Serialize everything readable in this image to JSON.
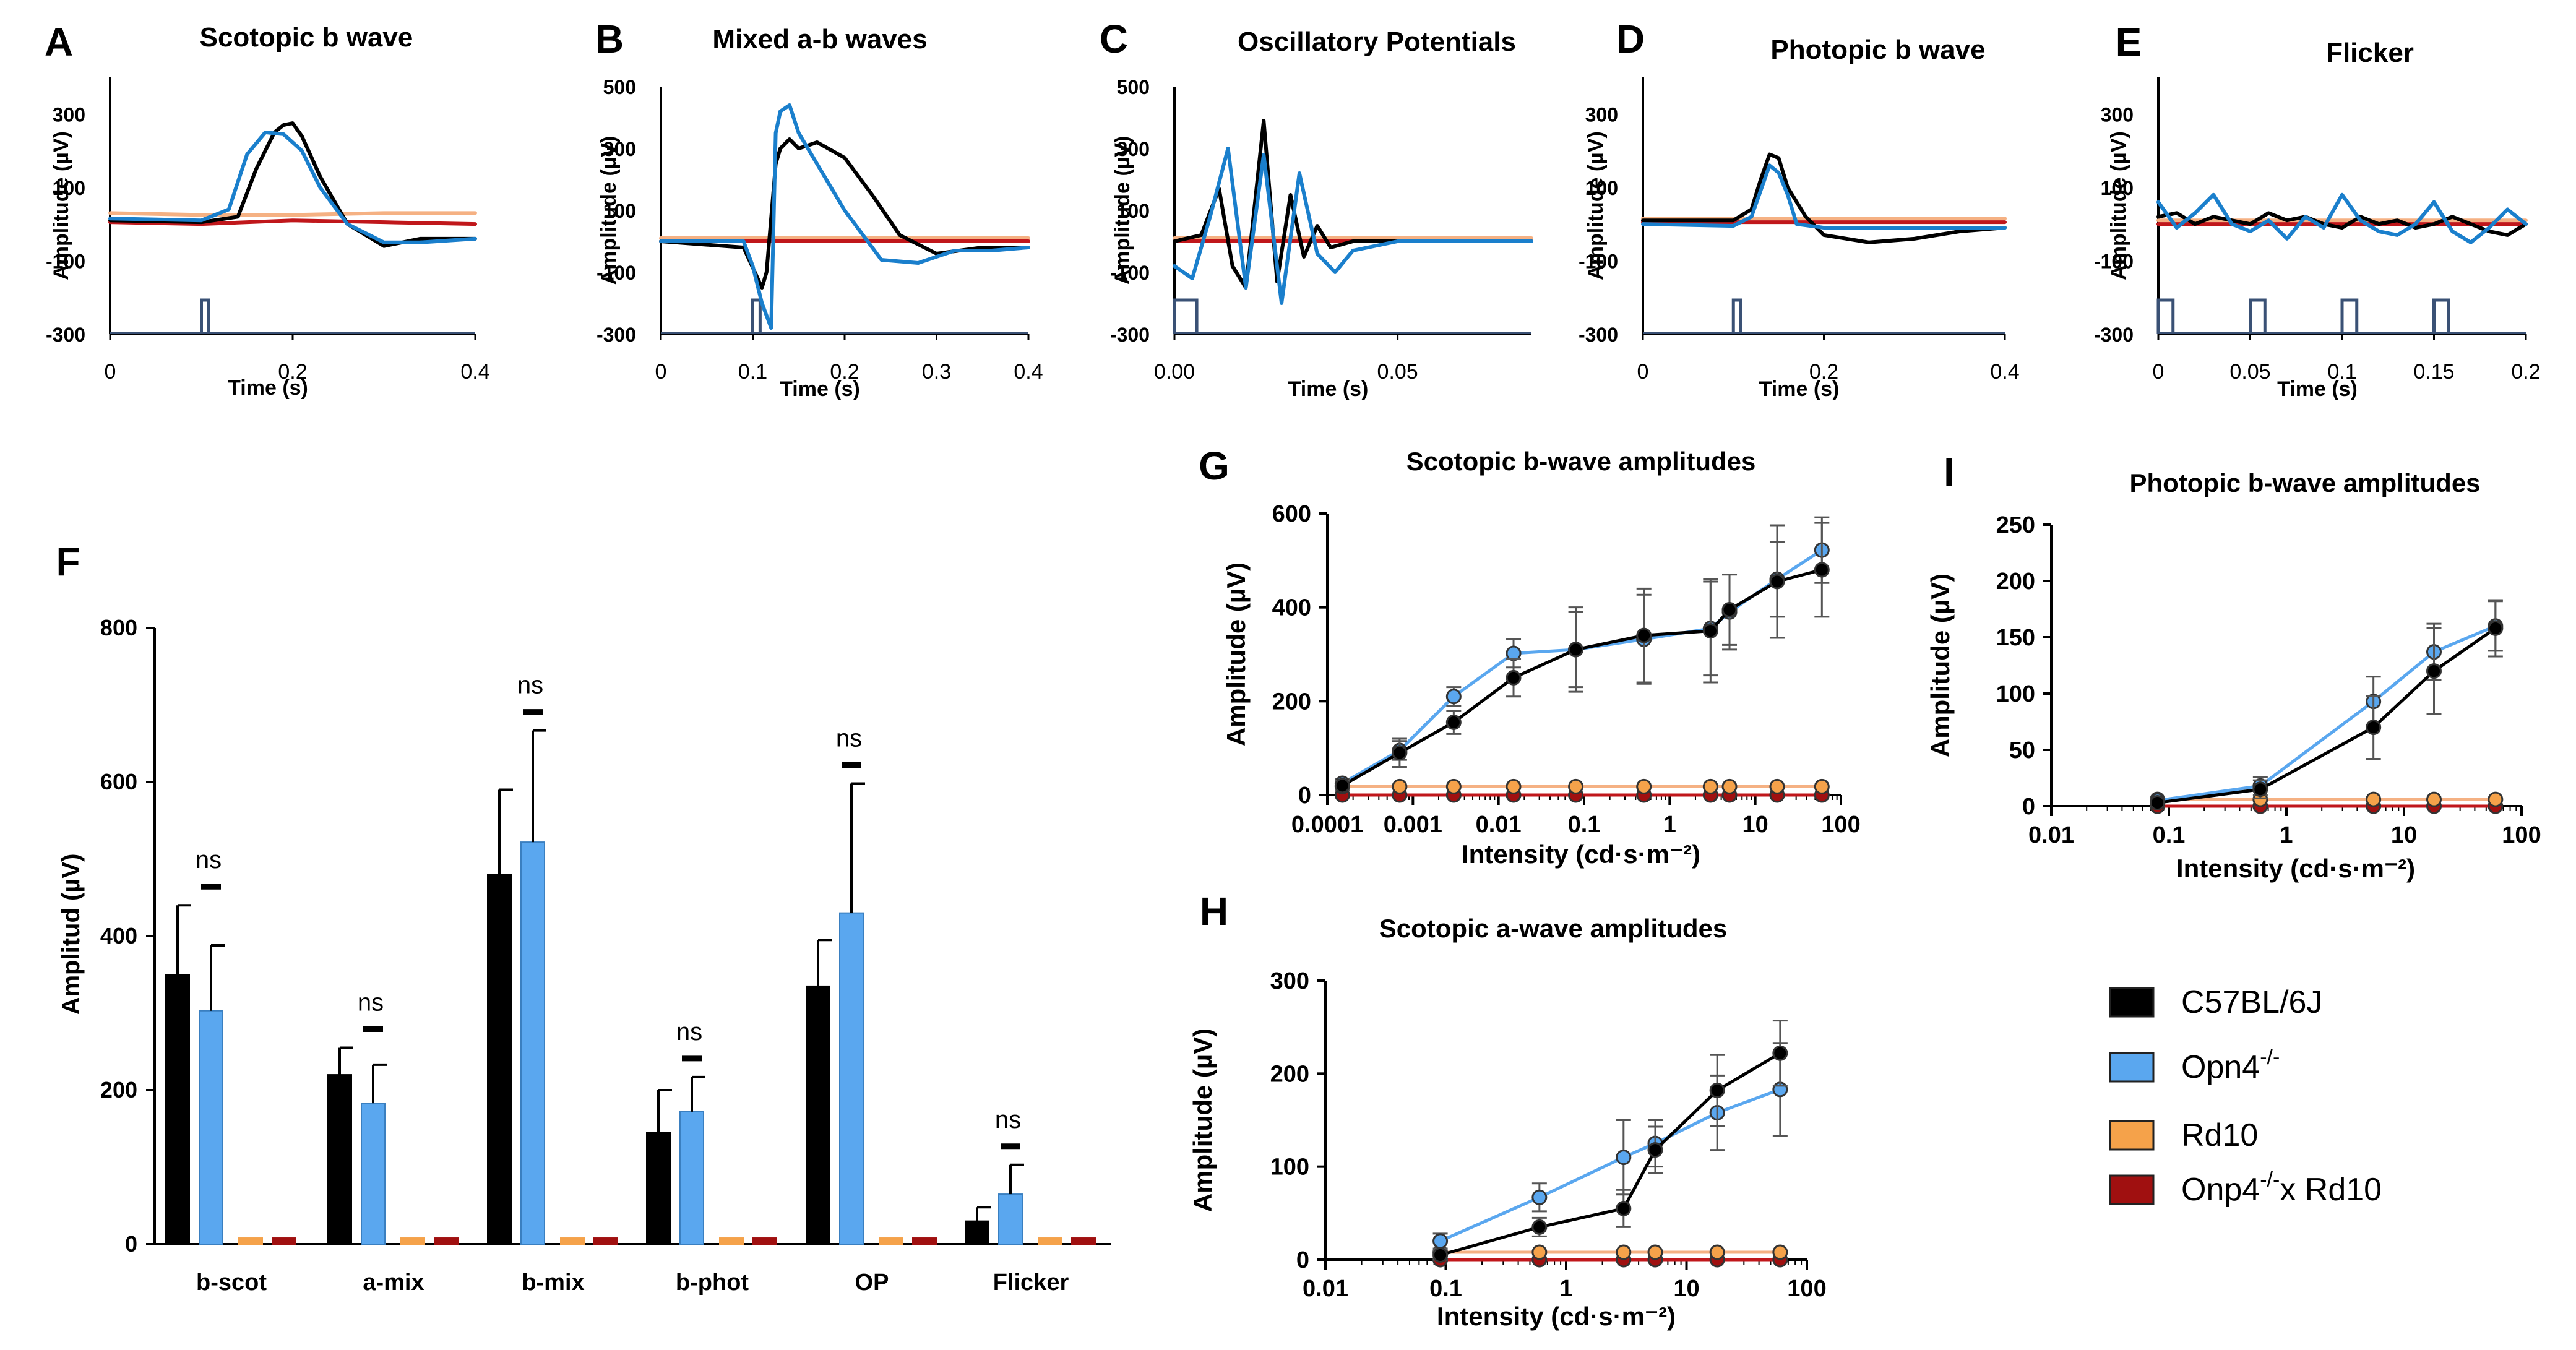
{
  "colors": {
    "c57": "#000000",
    "opn4": "#1a7fcc",
    "opn4_fill": "#5aa7ef",
    "rd10": "#f5b183",
    "rd10_fill": "#f5a24a",
    "dko": "#c0171b",
    "dko_fill": "#a01010",
    "stim": "#3a5175"
  },
  "chart_data": [
    {
      "panel": "A",
      "type": "line",
      "title": "Scotopic b wave",
      "xlabel": "Time (s)",
      "ylabel": "Amplitude (µV)",
      "xlim": [
        0,
        0.4
      ],
      "ylim": [
        -300,
        400
      ],
      "xticks": [
        "0",
        "0.2",
        "0.4"
      ],
      "yticks": [
        "300",
        "100",
        "-100",
        "-300"
      ],
      "series": [
        {
          "name": "C57BL/6J",
          "x": [
            0,
            0.1,
            0.14,
            0.16,
            0.18,
            0.19,
            0.2,
            0.21,
            0.23,
            0.26,
            0.3,
            0.34,
            0.4
          ],
          "y": [
            10,
            5,
            20,
            150,
            250,
            270,
            275,
            240,
            130,
            0,
            -60,
            -40,
            -40
          ]
        },
        {
          "name": "Opn4-/-",
          "x": [
            0,
            0.1,
            0.13,
            0.15,
            0.17,
            0.19,
            0.21,
            0.23,
            0.26,
            0.3,
            0.34,
            0.4
          ],
          "y": [
            15,
            10,
            40,
            190,
            250,
            245,
            200,
            100,
            0,
            -50,
            -50,
            -40
          ]
        },
        {
          "name": "Rd10",
          "x": [
            0,
            0.1,
            0.2,
            0.3,
            0.4
          ],
          "y": [
            30,
            25,
            25,
            30,
            30
          ]
        },
        {
          "name": "Onp4-/- x Rd10",
          "x": [
            0,
            0.1,
            0.2,
            0.3,
            0.4
          ],
          "y": [
            5,
            0,
            10,
            5,
            0
          ]
        }
      ],
      "stimulus": "flash at 0.1 s"
    },
    {
      "panel": "B",
      "type": "line",
      "title": "Mixed a-b waves",
      "xlabel": "Time (s)",
      "ylabel": "Amplitude (µV)",
      "xlim": [
        0,
        0.4
      ],
      "ylim": [
        -300,
        500
      ],
      "xticks": [
        "0",
        "0.1",
        "0.2",
        "0.3",
        "0.4"
      ],
      "yticks": [
        "500",
        "300",
        "100",
        "-100",
        "-300"
      ],
      "series": [
        {
          "name": "C57BL/6J",
          "x": [
            0,
            0.09,
            0.11,
            0.115,
            0.125,
            0.13,
            0.14,
            0.15,
            0.17,
            0.2,
            0.23,
            0.26,
            0.3,
            0.35,
            0.4
          ],
          "y": [
            0,
            -20,
            -150,
            -100,
            250,
            300,
            330,
            300,
            320,
            270,
            150,
            20,
            -40,
            -20,
            -20
          ]
        },
        {
          "name": "Opn4-/-",
          "x": [
            0,
            0.09,
            0.1,
            0.11,
            0.12,
            0.125,
            0.13,
            0.14,
            0.15,
            0.17,
            0.2,
            0.24,
            0.28,
            0.32,
            0.36,
            0.4
          ],
          "y": [
            0,
            0,
            -80,
            -200,
            -280,
            350,
            420,
            440,
            350,
            250,
            100,
            -60,
            -70,
            -30,
            -30,
            -20
          ]
        },
        {
          "name": "Rd10",
          "x": [
            0,
            0.2,
            0.4
          ],
          "y": [
            10,
            10,
            10
          ]
        },
        {
          "name": "Onp4-/- x Rd10",
          "x": [
            0,
            0.2,
            0.4
          ],
          "y": [
            0,
            0,
            0
          ]
        }
      ],
      "stimulus": "flash at 0.1 s"
    },
    {
      "panel": "C",
      "type": "line",
      "title": "Oscillatory Potentials",
      "xlabel": "Time (s)",
      "ylabel": "Amplitude (µV)",
      "xlim": [
        0,
        0.08
      ],
      "ylim": [
        -300,
        500
      ],
      "xticks": [
        "0.00",
        "0.05"
      ],
      "yticks": [
        "500",
        "300",
        "100",
        "-100",
        "-300"
      ],
      "series": [
        {
          "name": "C57BL/6J",
          "x": [
            0,
            0.006,
            0.01,
            0.013,
            0.016,
            0.02,
            0.023,
            0.026,
            0.029,
            0.032,
            0.035,
            0.04,
            0.05,
            0.08
          ],
          "y": [
            0,
            20,
            170,
            -80,
            -150,
            390,
            -130,
            150,
            -50,
            50,
            -20,
            0,
            0,
            0
          ]
        },
        {
          "name": "Opn4-/-",
          "x": [
            0,
            0.004,
            0.008,
            0.012,
            0.016,
            0.02,
            0.024,
            0.028,
            0.032,
            0.036,
            0.04,
            0.05,
            0.08
          ],
          "y": [
            -80,
            -120,
            80,
            300,
            -150,
            280,
            -200,
            220,
            -40,
            -100,
            -30,
            0,
            0
          ]
        },
        {
          "name": "Rd10",
          "x": [
            0,
            0.08
          ],
          "y": [
            10,
            10
          ]
        },
        {
          "name": "Onp4-/- x Rd10",
          "x": [
            0,
            0.08
          ],
          "y": [
            0,
            0
          ]
        }
      ],
      "stimulus": "pulse from 0 to 0.005 s"
    },
    {
      "panel": "D",
      "type": "line",
      "title": "Photopic b wave",
      "xlabel": "Time (s)",
      "ylabel": "Amplitude (µV)",
      "xlim": [
        0,
        0.4
      ],
      "ylim": [
        -300,
        400
      ],
      "xticks": [
        "0",
        "0.2",
        "0.4"
      ],
      "yticks": [
        "300",
        "100",
        "-100",
        "-300"
      ],
      "series": [
        {
          "name": "C57BL/6J",
          "x": [
            0,
            0.1,
            0.12,
            0.13,
            0.14,
            0.15,
            0.16,
            0.18,
            0.2,
            0.25,
            0.3,
            0.35,
            0.4
          ],
          "y": [
            10,
            10,
            40,
            120,
            190,
            180,
            100,
            20,
            -30,
            -50,
            -40,
            -20,
            -10
          ]
        },
        {
          "name": "Opn4-/-",
          "x": [
            0,
            0.1,
            0.12,
            0.13,
            0.14,
            0.15,
            0.16,
            0.17,
            0.2,
            0.3,
            0.4
          ],
          "y": [
            0,
            -5,
            20,
            90,
            160,
            140,
            80,
            0,
            -10,
            -10,
            -10
          ]
        },
        {
          "name": "Rd10",
          "x": [
            0,
            0.4
          ],
          "y": [
            15,
            15
          ]
        },
        {
          "name": "Onp4-/- x Rd10",
          "x": [
            0,
            0.4
          ],
          "y": [
            5,
            5
          ]
        }
      ],
      "stimulus": "flash at 0.1 s"
    },
    {
      "panel": "E",
      "type": "line",
      "title": "Flicker",
      "xlabel": "Time (s)",
      "ylabel": "Amplitude (µV)",
      "xlim": [
        0,
        0.2
      ],
      "ylim": [
        -300,
        400
      ],
      "xticks": [
        "0",
        "0.05",
        "0.1",
        "0.15",
        "0.2"
      ],
      "yticks": [
        "300",
        "100",
        "-100",
        "-300"
      ],
      "series": [
        {
          "name": "C57BL/6J",
          "x": [
            0,
            0.01,
            0.02,
            0.03,
            0.04,
            0.05,
            0.06,
            0.07,
            0.08,
            0.09,
            0.1,
            0.11,
            0.12,
            0.13,
            0.14,
            0.15,
            0.16,
            0.17,
            0.18,
            0.19,
            0.2
          ],
          "y": [
            20,
            30,
            0,
            20,
            10,
            0,
            30,
            10,
            20,
            0,
            -10,
            20,
            0,
            10,
            -10,
            0,
            20,
            0,
            -20,
            -30,
            0
          ]
        },
        {
          "name": "Opn4-/-",
          "x": [
            0,
            0.01,
            0.02,
            0.03,
            0.04,
            0.05,
            0.06,
            0.07,
            0.08,
            0.09,
            0.1,
            0.11,
            0.12,
            0.13,
            0.14,
            0.15,
            0.16,
            0.17,
            0.18,
            0.19,
            0.2
          ],
          "y": [
            60,
            -10,
            30,
            80,
            0,
            -20,
            10,
            -40,
            20,
            -10,
            80,
            10,
            -20,
            -30,
            0,
            60,
            -20,
            -50,
            -10,
            40,
            0
          ]
        },
        {
          "name": "Rd10",
          "x": [
            0,
            0.2
          ],
          "y": [
            10,
            10
          ]
        },
        {
          "name": "Onp4-/- x Rd10",
          "x": [
            0,
            0.2
          ],
          "y": [
            0,
            0
          ]
        }
      ],
      "stimulus": "pulses at 0, 0.05, 0.1, 0.15 s"
    },
    {
      "panel": "F",
      "type": "bar",
      "ylabel": "Amplitud (µV)",
      "ylim": [
        0,
        800
      ],
      "yticks": [
        "800",
        "600",
        "400",
        "200",
        "0"
      ],
      "categories": [
        "b-scot",
        "a-mix",
        "b-mix",
        "b-phot",
        "OP",
        "Flicker"
      ],
      "significance": "ns",
      "series": [
        {
          "name": "C57BL/6J",
          "values": [
            350,
            220,
            480,
            145,
            335,
            30
          ],
          "errors": [
            90,
            35,
            110,
            55,
            60,
            18
          ]
        },
        {
          "name": "Opn4-/-",
          "values": [
            303,
            183,
            522,
            172,
            430,
            65
          ],
          "errors": [
            85,
            50,
            145,
            45,
            168,
            38
          ]
        },
        {
          "name": "Rd10",
          "values": [
            8,
            8,
            8,
            8,
            8,
            8
          ]
        },
        {
          "name": "Onp4-/- x Rd10",
          "values": [
            8,
            8,
            8,
            8,
            8,
            8
          ]
        }
      ]
    },
    {
      "panel": "G",
      "type": "scatter",
      "title": "Scotopic b-wave amplitudes",
      "xlabel": "Intensity (cd·s·m⁻²)",
      "ylabel": "Amplitude (µV)",
      "xscale": "log",
      "xlim": [
        0.0001,
        100
      ],
      "ylim": [
        0,
        600
      ],
      "xticks": [
        "0.0001",
        "0.001",
        "0.01",
        "0.1",
        "1",
        "10",
        "100"
      ],
      "yticks": [
        "600",
        "400",
        "200",
        "0"
      ],
      "x": [
        0.00015,
        0.0007,
        0.003,
        0.015,
        0.08,
        0.5,
        3,
        5,
        18,
        60
      ],
      "series": [
        {
          "name": "C57BL/6J",
          "values": [
            20,
            90,
            155,
            250,
            310,
            340,
            350,
            395,
            455,
            480
          ],
          "errors": [
            10,
            30,
            25,
            40,
            90,
            100,
            110,
            75,
            120,
            100
          ]
        },
        {
          "name": "Opn4-/-",
          "values": [
            25,
            95,
            210,
            302,
            310,
            332,
            355,
            390,
            460,
            522
          ],
          "errors": [
            10,
            20,
            20,
            30,
            80,
            95,
            100,
            80,
            80,
            70
          ]
        },
        {
          "name": "Rd10",
          "values": [
            18,
            18,
            18,
            18,
            18,
            18,
            18,
            18,
            18,
            18
          ]
        },
        {
          "name": "Onp4-/- x Rd10",
          "values": [
            0,
            0,
            0,
            0,
            0,
            0,
            0,
            0,
            0,
            0
          ]
        }
      ]
    },
    {
      "panel": "H",
      "type": "scatter",
      "title": "Scotopic a-wave amplitudes",
      "xlabel": "Intensity (cd·s·m⁻²)",
      "ylabel": "Amplitude (µV)",
      "xscale": "log",
      "xlim": [
        0.01,
        100
      ],
      "ylim": [
        0,
        300
      ],
      "xticks": [
        "0.01",
        "0.1",
        "1",
        "10",
        "100"
      ],
      "yticks": [
        "300",
        "200",
        "100",
        "0"
      ],
      "x": [
        0.09,
        0.6,
        3,
        5.5,
        18,
        60
      ],
      "series": [
        {
          "name": "C57BL/6J",
          "values": [
            5,
            35,
            55,
            118,
            182,
            222
          ],
          "errors": [
            5,
            10,
            20,
            25,
            38,
            35
          ]
        },
        {
          "name": "Opn4-/-",
          "values": [
            20,
            67,
            110,
            125,
            158,
            183
          ],
          "errors": [
            8,
            15,
            40,
            25,
            40,
            50
          ]
        },
        {
          "name": "Rd10",
          "values": [
            8,
            8,
            8,
            8,
            8,
            8
          ]
        },
        {
          "name": "Onp4-/- x Rd10",
          "values": [
            0,
            0,
            0,
            0,
            0,
            0
          ]
        }
      ]
    },
    {
      "panel": "I",
      "type": "scatter",
      "title": "Photopic b-wave amplitudes",
      "xlabel": "Intensity (cd·s·m⁻²)",
      "ylabel": "Amplitude (µV)",
      "xscale": "log",
      "xlim": [
        0.01,
        100
      ],
      "ylim": [
        0,
        250
      ],
      "xticks": [
        "0.01",
        "0.1",
        "1",
        "10",
        "100"
      ],
      "yticks": [
        "250",
        "200",
        "150",
        "100",
        "50",
        "0"
      ],
      "x": [
        0.08,
        0.6,
        5.5,
        18,
        60
      ],
      "series": [
        {
          "name": "C57BL/6J",
          "values": [
            3,
            15,
            70,
            120,
            158
          ],
          "errors": [
            3,
            8,
            28,
            38,
            25
          ]
        },
        {
          "name": "Opn4-/-",
          "values": [
            5,
            18,
            93,
            137,
            160
          ],
          "errors": [
            3,
            8,
            22,
            25,
            22
          ]
        },
        {
          "name": "Rd10",
          "values": [
            6,
            6,
            6,
            6,
            6
          ]
        },
        {
          "name": "Onp4-/- x Rd10",
          "values": [
            0,
            0,
            0,
            0,
            0
          ]
        }
      ]
    }
  ],
  "legend": [
    {
      "label": "C57BL/6J",
      "key": "c57",
      "sup": "",
      "tail": ""
    },
    {
      "label": "Opn4",
      "key": "opn4",
      "sup": "-/-",
      "tail": ""
    },
    {
      "label": "Rd10",
      "key": "rd10",
      "sup": "",
      "tail": ""
    },
    {
      "label": "Onp4",
      "key": "dko",
      "sup": "-/-",
      "tail": "x Rd10"
    }
  ]
}
